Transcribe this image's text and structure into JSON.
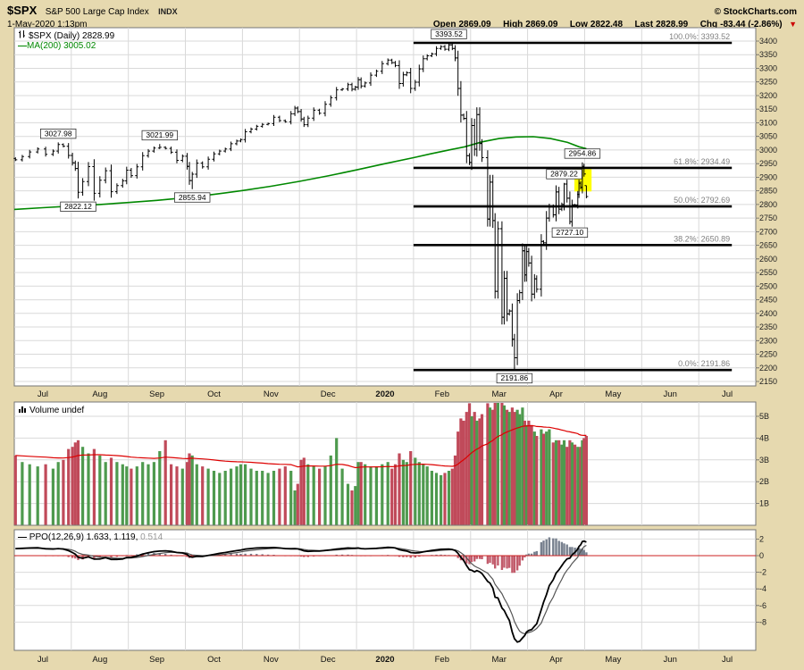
{
  "header": {
    "symbol": "$SPX",
    "name": "S&P 500 Large Cap Index",
    "exchange": "INDX",
    "copyright": "© StockCharts.com",
    "datetime": "1-May-2020 1:13pm",
    "quote": {
      "open_label": "Open",
      "open": "2869.09",
      "high_label": "High",
      "high": "2869.09",
      "low_label": "Low",
      "low": "2822.48",
      "last_label": "Last",
      "last": "2828.99",
      "chg_label": "Chg",
      "chg": "-83.44 (-2.86%)",
      "direction": "▼"
    }
  },
  "legends": {
    "price": {
      "text": "$SPX (Daily) 2828.99"
    },
    "ma": {
      "dash": "—",
      "text": "MA(200) 3005.02"
    },
    "volume": {
      "text": "Volume undef"
    },
    "ppo": {
      "dash": "—",
      "text_dark": "PPO(12,26,9) 1.633, 1.119,",
      "value_gray": "0.514"
    }
  },
  "colors": {
    "background": "#E6D9AF",
    "panel_bg": "#FFFFFF",
    "panel_border": "#777777",
    "grid": "#D9D9D9",
    "axis_text": "#222222",
    "price_bar": "#000000",
    "ma200": "#008800",
    "vol_up": "#4E9A4E",
    "vol_down": "#C04A5A",
    "vol_ma": "#DD0000",
    "ppo_line": "#000000",
    "ppo_signal": "#555555",
    "hist_pos": "#77808E",
    "hist_neg": "#C25B6B",
    "zero_line": "#CC2222",
    "fib_line": "#000000",
    "fib_label": "#808080",
    "highlight": "#FFFF00"
  },
  "chart_data": {
    "title": "$SPX S&P 500 Large Cap Index - Daily OHLC with MA(200), Volume and PPO(12,26,9)",
    "type": "line",
    "style": "daily OHLC bar chart, 3 stacked panels",
    "x_axis": {
      "note": "x unit = months since 1-Jul-2019 (fraction = position within month); data ends 1-May-2020 at x=10.03",
      "labels": [
        {
          "t": "Jul"
        },
        {
          "t": "Aug"
        },
        {
          "t": "Sep"
        },
        {
          "t": "Oct"
        },
        {
          "t": "Nov"
        },
        {
          "t": "Dec"
        },
        {
          "t": "2020",
          "b": true
        },
        {
          "t": "Feb"
        },
        {
          "t": "Mar"
        },
        {
          "t": "Apr"
        },
        {
          "t": "May"
        },
        {
          "t": "Jun"
        },
        {
          "t": "Jul"
        }
      ]
    },
    "price_panel": {
      "type": "line",
      "ylim": [
        2150,
        3400
      ],
      "tick_step": 50,
      "last_close": 2828.99,
      "fib_levels": [
        {
          "label": "100.0%",
          "value": 3393.52
        },
        {
          "label": "61.8%",
          "value": 2934.49
        },
        {
          "label": "50.0%",
          "value": 2792.69
        },
        {
          "label": "38.2%",
          "value": 2650.89
        },
        {
          "label": "0.0%",
          "value": 2191.86
        }
      ],
      "fib_span_months": [
        7.0,
        12.58
      ],
      "annotations": [
        {
          "x": 7.62,
          "price": 3393.52,
          "side": "above",
          "text": "3393.52"
        },
        {
          "x": 0.77,
          "price": 3027.98,
          "side": "above",
          "text": "3027.98"
        },
        {
          "x": 2.55,
          "price": 3021.99,
          "side": "above",
          "text": "3021.99"
        },
        {
          "x": 1.12,
          "price": 2822.12,
          "side": "below",
          "text": "2822.12"
        },
        {
          "x": 3.12,
          "price": 2855.94,
          "side": "below",
          "text": "2855.94"
        },
        {
          "x": 9.96,
          "price": 2954.86,
          "side": "above",
          "text": "2954.86"
        },
        {
          "x": 9.64,
          "price": 2879.22,
          "side": "above",
          "text": "2879.22"
        },
        {
          "x": 9.74,
          "price": 2727.1,
          "side": "below",
          "text": "2727.10"
        },
        {
          "x": 8.77,
          "price": 2191.86,
          "side": "below",
          "text": "2191.86"
        }
      ],
      "highlight": {
        "x1": 9.82,
        "x2": 10.12,
        "p_top": 2930,
        "p_bottom": 2848
      },
      "ma200": {
        "name": "MA(200)",
        "value_now": 3005.02,
        "points": [
          [
            0,
            2782
          ],
          [
            0.5,
            2788
          ],
          [
            1,
            2794
          ],
          [
            1.5,
            2800
          ],
          [
            2,
            2807
          ],
          [
            2.5,
            2815
          ],
          [
            3,
            2825
          ],
          [
            3.5,
            2837
          ],
          [
            4,
            2851
          ],
          [
            4.5,
            2867
          ],
          [
            5,
            2885
          ],
          [
            5.5,
            2905
          ],
          [
            6,
            2927
          ],
          [
            6.5,
            2950
          ],
          [
            7,
            2972
          ],
          [
            7.3,
            2986
          ],
          [
            7.6,
            2999
          ],
          [
            7.9,
            3012
          ],
          [
            8.2,
            3030
          ],
          [
            8.5,
            3042
          ],
          [
            8.8,
            3048
          ],
          [
            9.1,
            3049
          ],
          [
            9.4,
            3042
          ],
          [
            9.7,
            3028
          ],
          [
            9.9,
            3012
          ],
          [
            10.03,
            3005
          ]
        ]
      }
    },
    "volume_panel": {
      "type": "bar",
      "units": "billions of shares",
      "ylim_B": [
        0,
        5.6
      ],
      "ticks": [
        {
          "v": 1,
          "t": "1B"
        },
        {
          "v": 2,
          "t": "2B"
        },
        {
          "v": 3,
          "t": "3B"
        },
        {
          "v": 4,
          "t": "4B"
        },
        {
          "v": 5,
          "t": "5B"
        }
      ],
      "ma_note": "red line = smoothed volume average, ends near 4.2B"
    },
    "ppo_panel": {
      "type": "line",
      "params": "12,26,9",
      "now": {
        "ppo": 1.633,
        "signal": 1.119,
        "histogram": 0.514
      },
      "ylim": [
        -11.3,
        3.2
      ],
      "ticks": [
        {
          "v": 2,
          "t": "2"
        },
        {
          "v": 0,
          "t": "0"
        },
        {
          "v": -2,
          "t": "-2"
        },
        {
          "v": -4,
          "t": "-4"
        },
        {
          "v": -6,
          "t": "-6"
        },
        {
          "v": -8,
          "t": "-8"
        }
      ],
      "signal_ema_alpha": 0.28
    },
    "columns": [
      "x_month",
      "close",
      "volume_B",
      "ppo"
    ],
    "rows": [
      [
        0.02,
        2964,
        3.2,
        0.85
      ],
      [
        0.14,
        2976,
        2.9,
        0.88
      ],
      [
        0.27,
        2993,
        2.8,
        0.92
      ],
      [
        0.41,
        3004,
        2.7,
        0.95
      ],
      [
        0.55,
        2984,
        2.8,
        0.82
      ],
      [
        0.68,
        2996,
        2.6,
        0.8
      ],
      [
        0.77,
        3020,
        2.9,
        0.85
      ],
      [
        0.86,
        3014,
        3.0,
        0.8
      ],
      [
        0.95,
        2980,
        3.5,
        0.6
      ],
      [
        1.02,
        2953,
        3.6,
        0.38
      ],
      [
        1.07,
        2932,
        3.8,
        0.18
      ],
      [
        1.12,
        2845,
        3.9,
        -0.2
      ],
      [
        1.2,
        2884,
        3.6,
        -0.3
      ],
      [
        1.3,
        2939,
        3.3,
        -0.15
      ],
      [
        1.4,
        2841,
        3.5,
        -0.42
      ],
      [
        1.5,
        2889,
        3.2,
        -0.4
      ],
      [
        1.6,
        2924,
        2.9,
        -0.25
      ],
      [
        1.7,
        2847,
        3.1,
        -0.45
      ],
      [
        1.8,
        2869,
        2.9,
        -0.45
      ],
      [
        1.9,
        2887,
        2.8,
        -0.4
      ],
      [
        1.97,
        2926,
        2.7,
        -0.22
      ],
      [
        2.05,
        2906,
        2.6,
        -0.2
      ],
      [
        2.15,
        2938,
        2.7,
        -0.05
      ],
      [
        2.25,
        2979,
        2.9,
        0.18
      ],
      [
        2.35,
        2996,
        2.8,
        0.35
      ],
      [
        2.45,
        3007,
        2.9,
        0.48
      ],
      [
        2.55,
        3010,
        3.4,
        0.55
      ],
      [
        2.65,
        3006,
        3.9,
        0.58
      ],
      [
        2.75,
        2992,
        2.8,
        0.52
      ],
      [
        2.85,
        2962,
        2.7,
        0.38
      ],
      [
        2.95,
        2977,
        2.6,
        0.32
      ],
      [
        3.03,
        2940,
        2.9,
        0.15
      ],
      [
        3.07,
        2888,
        3.3,
        -0.1
      ],
      [
        3.12,
        2911,
        3.2,
        -0.18
      ],
      [
        3.2,
        2952,
        2.8,
        -0.08
      ],
      [
        3.3,
        2938,
        2.7,
        -0.1
      ],
      [
        3.4,
        2966,
        2.6,
        0.02
      ],
      [
        3.5,
        2986,
        2.5,
        0.15
      ],
      [
        3.6,
        2996,
        2.4,
        0.28
      ],
      [
        3.7,
        3004,
        2.5,
        0.38
      ],
      [
        3.8,
        3023,
        2.6,
        0.5
      ],
      [
        3.9,
        3033,
        2.7,
        0.6
      ],
      [
        3.97,
        3038,
        2.8,
        0.67
      ],
      [
        4.05,
        3067,
        2.8,
        0.78
      ],
      [
        4.15,
        3077,
        2.6,
        0.86
      ],
      [
        4.25,
        3087,
        2.5,
        0.92
      ],
      [
        4.35,
        3094,
        2.5,
        0.95
      ],
      [
        4.45,
        3097,
        2.4,
        0.96
      ],
      [
        4.55,
        3120,
        2.5,
        0.98
      ],
      [
        4.65,
        3108,
        2.6,
        0.93
      ],
      [
        4.75,
        3104,
        2.7,
        0.85
      ],
      [
        4.85,
        3133,
        2.5,
        0.83
      ],
      [
        4.92,
        3154,
        1.6,
        0.84
      ],
      [
        4.97,
        3141,
        1.9,
        0.82
      ],
      [
        5.03,
        3114,
        3.0,
        0.7
      ],
      [
        5.08,
        3093,
        3.1,
        0.58
      ],
      [
        5.15,
        3117,
        2.8,
        0.52
      ],
      [
        5.25,
        3146,
        2.7,
        0.55
      ],
      [
        5.35,
        3135,
        2.6,
        0.55
      ],
      [
        5.45,
        3168,
        2.7,
        0.62
      ],
      [
        5.55,
        3192,
        3.2,
        0.7
      ],
      [
        5.65,
        3221,
        4.0,
        0.8
      ],
      [
        5.75,
        3224,
        2.6,
        0.86
      ],
      [
        5.85,
        3240,
        1.9,
        0.92
      ],
      [
        5.92,
        3223,
        1.6,
        0.9
      ],
      [
        5.98,
        3231,
        1.8,
        0.89
      ],
      [
        6.03,
        3258,
        2.9,
        0.92
      ],
      [
        6.08,
        3235,
        2.9,
        0.85
      ],
      [
        6.15,
        3246,
        2.8,
        0.82
      ],
      [
        6.25,
        3275,
        2.7,
        0.85
      ],
      [
        6.35,
        3289,
        2.7,
        0.88
      ],
      [
        6.45,
        3317,
        2.8,
        0.94
      ],
      [
        6.55,
        3330,
        2.9,
        1.0
      ],
      [
        6.62,
        3321,
        2.6,
        0.98
      ],
      [
        6.68,
        3310,
        2.8,
        0.92
      ],
      [
        6.75,
        3244,
        3.3,
        0.72
      ],
      [
        6.82,
        3276,
        3.0,
        0.62
      ],
      [
        6.88,
        3284,
        2.9,
        0.56
      ],
      [
        6.95,
        3226,
        3.4,
        0.38
      ],
      [
        7.03,
        3249,
        3.1,
        0.32
      ],
      [
        7.1,
        3298,
        2.9,
        0.36
      ],
      [
        7.17,
        3335,
        2.8,
        0.45
      ],
      [
        7.24,
        3346,
        2.7,
        0.54
      ],
      [
        7.32,
        3353,
        2.5,
        0.62
      ],
      [
        7.4,
        3373,
        2.4,
        0.7
      ],
      [
        7.48,
        3380,
        2.3,
        0.76
      ],
      [
        7.55,
        3370,
        2.4,
        0.77
      ],
      [
        7.62,
        3386,
        2.5,
        0.78
      ],
      [
        7.68,
        3373,
        2.6,
        0.74
      ],
      [
        7.73,
        3338,
        3.2,
        0.62
      ],
      [
        7.78,
        3226,
        4.3,
        0.28
      ],
      [
        7.83,
        3128,
        4.9,
        -0.2
      ],
      [
        7.88,
        3116,
        4.8,
        -0.58
      ],
      [
        7.93,
        2979,
        5.2,
        -1.2
      ],
      [
        7.98,
        2954,
        5.6,
        -1.7
      ],
      [
        8.02,
        3090,
        5.0,
        -1.75
      ],
      [
        8.07,
        3003,
        5.2,
        -1.95
      ],
      [
        8.11,
        3130,
        4.8,
        -1.8
      ],
      [
        8.16,
        3024,
        4.9,
        -1.95
      ],
      [
        8.2,
        2972,
        5.1,
        -2.15
      ],
      [
        8.3,
        2746,
        5.6,
        -3.1
      ],
      [
        8.34,
        2882,
        5.4,
        -3.3
      ],
      [
        8.39,
        2741,
        5.3,
        -3.9
      ],
      [
        8.43,
        2481,
        5.7,
        -5.0
      ],
      [
        8.48,
        2711,
        5.8,
        -5.1
      ],
      [
        8.55,
        2386,
        5.7,
        -6.3
      ],
      [
        8.59,
        2529,
        5.5,
        -6.6
      ],
      [
        8.64,
        2398,
        5.3,
        -7.3
      ],
      [
        8.68,
        2409,
        5.2,
        -7.8
      ],
      [
        8.73,
        2305,
        5.4,
        -9.2
      ],
      [
        8.77,
        2237,
        5.2,
        -10.0
      ],
      [
        8.82,
        2447,
        5.3,
        -10.4
      ],
      [
        8.86,
        2476,
        5.1,
        -10.3
      ],
      [
        8.91,
        2630,
        5.4,
        -9.9
      ],
      [
        8.95,
        2541,
        4.8,
        -9.6
      ],
      [
        8.98,
        2627,
        4.6,
        -9.2
      ],
      [
        9.02,
        2585,
        4.8,
        -9.0
      ],
      [
        9.07,
        2471,
        4.6,
        -8.9
      ],
      [
        9.12,
        2527,
        4.3,
        -8.5
      ],
      [
        9.16,
        2489,
        4.1,
        -8.2
      ],
      [
        9.24,
        2664,
        4.4,
        -6.5
      ],
      [
        9.28,
        2659,
        4.2,
        -5.6
      ],
      [
        9.33,
        2750,
        4.3,
        -4.7
      ],
      [
        9.38,
        2790,
        4.4,
        -3.6
      ],
      [
        9.45,
        2762,
        3.8,
        -2.9
      ],
      [
        9.5,
        2846,
        3.9,
        -2.1
      ],
      [
        9.55,
        2783,
        3.9,
        -1.7
      ],
      [
        9.6,
        2800,
        3.7,
        -1.2
      ],
      [
        9.64,
        2875,
        3.9,
        -0.8
      ],
      [
        9.69,
        2823,
        3.6,
        -0.4
      ],
      [
        9.74,
        2737,
        3.9,
        -0.3
      ],
      [
        9.78,
        2799,
        3.8,
        0.1
      ],
      [
        9.83,
        2798,
        3.7,
        0.4
      ],
      [
        9.88,
        2837,
        3.6,
        0.8
      ],
      [
        9.9,
        2878,
        3.5,
        1.1
      ],
      [
        9.93,
        2863,
        3.6,
        1.3
      ],
      [
        9.96,
        2940,
        3.9,
        1.7
      ],
      [
        9.99,
        2912,
        4.0,
        1.75
      ],
      [
        10.03,
        2829,
        4.1,
        1.633
      ]
    ],
    "forced_extremes": {
      "0.77": {
        "h": 3027.98
      },
      "1.12": {
        "l": 2822.12
      },
      "2.55": {
        "h": 3021.99
      },
      "3.12": {
        "l": 2855.94
      },
      "7.62": {
        "h": 3393.52
      },
      "8.77": {
        "l": 2191.86
      },
      "9.64": {
        "h": 2879.22
      },
      "9.74": {
        "l": 2727.1
      },
      "9.96": {
        "h": 2954.86
      },
      "10.03": {
        "o": 2869.09,
        "h": 2869.09,
        "l": 2822.48
      }
    }
  }
}
